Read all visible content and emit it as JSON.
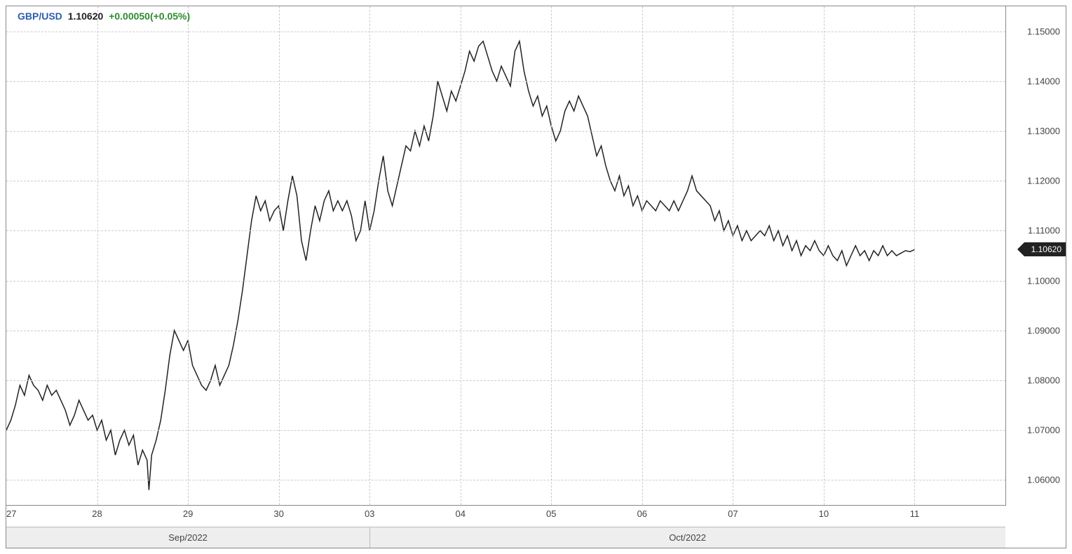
{
  "header": {
    "symbol": "GBP/USD",
    "price": "1.10620",
    "change": "+0.00050(+0.05%)"
  },
  "chart": {
    "type": "line",
    "line_color": "#222222",
    "line_width": 1.5,
    "background_color": "#ffffff",
    "grid_color": "#cccccc",
    "border_color": "#888888",
    "y_axis": {
      "min": 1.055,
      "max": 1.155,
      "ticks": [
        1.06,
        1.07,
        1.08,
        1.09,
        1.1,
        1.11,
        1.12,
        1.13,
        1.14,
        1.15
      ],
      "tick_labels": [
        "1.06000",
        "1.07000",
        "1.08000",
        "1.09000",
        "1.10000",
        "1.11000",
        "1.12000",
        "1.13000",
        "1.14000",
        "1.15000"
      ],
      "label_fontsize": 13,
      "label_color": "#444444"
    },
    "x_axis": {
      "min": 0,
      "max": 11,
      "ticks": [
        0,
        1,
        2,
        3,
        4,
        5,
        6,
        7,
        8,
        9,
        10,
        11
      ],
      "tick_labels": [
        "27",
        "28",
        "29",
        "30",
        "03",
        "04",
        "05",
        "06",
        "07",
        "10",
        "11",
        ""
      ],
      "month_bands": [
        {
          "label": "Sep/2022",
          "start": 0,
          "end": 4
        },
        {
          "label": "Oct/2022",
          "start": 4,
          "end": 11
        }
      ],
      "month_band_bg": "#eeeeee",
      "label_fontsize": 13
    },
    "current_flag": {
      "value": 1.1062,
      "label": "1.10620",
      "bg": "#222222",
      "color": "#ffffff"
    },
    "series": [
      [
        0.0,
        1.07
      ],
      [
        0.05,
        1.072
      ],
      [
        0.1,
        1.075
      ],
      [
        0.15,
        1.079
      ],
      [
        0.2,
        1.077
      ],
      [
        0.25,
        1.081
      ],
      [
        0.3,
        1.079
      ],
      [
        0.35,
        1.078
      ],
      [
        0.4,
        1.076
      ],
      [
        0.45,
        1.079
      ],
      [
        0.5,
        1.077
      ],
      [
        0.55,
        1.078
      ],
      [
        0.6,
        1.076
      ],
      [
        0.65,
        1.074
      ],
      [
        0.7,
        1.071
      ],
      [
        0.75,
        1.073
      ],
      [
        0.8,
        1.076
      ],
      [
        0.85,
        1.074
      ],
      [
        0.9,
        1.072
      ],
      [
        0.95,
        1.073
      ],
      [
        1.0,
        1.07
      ],
      [
        1.05,
        1.072
      ],
      [
        1.1,
        1.068
      ],
      [
        1.15,
        1.07
      ],
      [
        1.2,
        1.065
      ],
      [
        1.25,
        1.068
      ],
      [
        1.3,
        1.07
      ],
      [
        1.35,
        1.067
      ],
      [
        1.4,
        1.069
      ],
      [
        1.45,
        1.063
      ],
      [
        1.5,
        1.066
      ],
      [
        1.55,
        1.064
      ],
      [
        1.57,
        1.058
      ],
      [
        1.6,
        1.065
      ],
      [
        1.65,
        1.068
      ],
      [
        1.7,
        1.072
      ],
      [
        1.75,
        1.078
      ],
      [
        1.8,
        1.085
      ],
      [
        1.85,
        1.09
      ],
      [
        1.9,
        1.088
      ],
      [
        1.95,
        1.086
      ],
      [
        2.0,
        1.088
      ],
      [
        2.05,
        1.083
      ],
      [
        2.1,
        1.081
      ],
      [
        2.15,
        1.079
      ],
      [
        2.2,
        1.078
      ],
      [
        2.25,
        1.08
      ],
      [
        2.3,
        1.083
      ],
      [
        2.35,
        1.079
      ],
      [
        2.4,
        1.081
      ],
      [
        2.45,
        1.083
      ],
      [
        2.5,
        1.087
      ],
      [
        2.55,
        1.092
      ],
      [
        2.6,
        1.098
      ],
      [
        2.65,
        1.105
      ],
      [
        2.7,
        1.112
      ],
      [
        2.75,
        1.117
      ],
      [
        2.8,
        1.114
      ],
      [
        2.85,
        1.116
      ],
      [
        2.9,
        1.112
      ],
      [
        2.95,
        1.114
      ],
      [
        3.0,
        1.115
      ],
      [
        3.05,
        1.11
      ],
      [
        3.1,
        1.116
      ],
      [
        3.15,
        1.121
      ],
      [
        3.2,
        1.117
      ],
      [
        3.25,
        1.108
      ],
      [
        3.3,
        1.104
      ],
      [
        3.35,
        1.11
      ],
      [
        3.4,
        1.115
      ],
      [
        3.45,
        1.112
      ],
      [
        3.5,
        1.116
      ],
      [
        3.55,
        1.118
      ],
      [
        3.6,
        1.114
      ],
      [
        3.65,
        1.116
      ],
      [
        3.7,
        1.114
      ],
      [
        3.75,
        1.116
      ],
      [
        3.8,
        1.113
      ],
      [
        3.85,
        1.108
      ],
      [
        3.9,
        1.11
      ],
      [
        3.95,
        1.116
      ],
      [
        4.0,
        1.11
      ],
      [
        4.05,
        1.114
      ],
      [
        4.1,
        1.12
      ],
      [
        4.15,
        1.125
      ],
      [
        4.2,
        1.118
      ],
      [
        4.25,
        1.115
      ],
      [
        4.3,
        1.119
      ],
      [
        4.35,
        1.123
      ],
      [
        4.4,
        1.127
      ],
      [
        4.45,
        1.126
      ],
      [
        4.5,
        1.13
      ],
      [
        4.55,
        1.127
      ],
      [
        4.6,
        1.131
      ],
      [
        4.65,
        1.128
      ],
      [
        4.7,
        1.133
      ],
      [
        4.75,
        1.14
      ],
      [
        4.8,
        1.137
      ],
      [
        4.85,
        1.134
      ],
      [
        4.9,
        1.138
      ],
      [
        4.95,
        1.136
      ],
      [
        5.0,
        1.139
      ],
      [
        5.05,
        1.142
      ],
      [
        5.1,
        1.146
      ],
      [
        5.15,
        1.144
      ],
      [
        5.2,
        1.147
      ],
      [
        5.25,
        1.148
      ],
      [
        5.3,
        1.145
      ],
      [
        5.35,
        1.142
      ],
      [
        5.4,
        1.14
      ],
      [
        5.45,
        1.143
      ],
      [
        5.5,
        1.141
      ],
      [
        5.55,
        1.139
      ],
      [
        5.6,
        1.146
      ],
      [
        5.65,
        1.148
      ],
      [
        5.7,
        1.142
      ],
      [
        5.75,
        1.138
      ],
      [
        5.8,
        1.135
      ],
      [
        5.85,
        1.137
      ],
      [
        5.9,
        1.133
      ],
      [
        5.95,
        1.135
      ],
      [
        6.0,
        1.131
      ],
      [
        6.05,
        1.128
      ],
      [
        6.1,
        1.13
      ],
      [
        6.15,
        1.134
      ],
      [
        6.2,
        1.136
      ],
      [
        6.25,
        1.134
      ],
      [
        6.3,
        1.137
      ],
      [
        6.35,
        1.135
      ],
      [
        6.4,
        1.133
      ],
      [
        6.45,
        1.129
      ],
      [
        6.5,
        1.125
      ],
      [
        6.55,
        1.127
      ],
      [
        6.6,
        1.123
      ],
      [
        6.65,
        1.12
      ],
      [
        6.7,
        1.118
      ],
      [
        6.75,
        1.121
      ],
      [
        6.8,
        1.117
      ],
      [
        6.85,
        1.119
      ],
      [
        6.9,
        1.115
      ],
      [
        6.95,
        1.117
      ],
      [
        7.0,
        1.114
      ],
      [
        7.05,
        1.116
      ],
      [
        7.1,
        1.115
      ],
      [
        7.15,
        1.114
      ],
      [
        7.2,
        1.116
      ],
      [
        7.25,
        1.115
      ],
      [
        7.3,
        1.114
      ],
      [
        7.35,
        1.116
      ],
      [
        7.4,
        1.114
      ],
      [
        7.45,
        1.116
      ],
      [
        7.5,
        1.118
      ],
      [
        7.55,
        1.121
      ],
      [
        7.6,
        1.118
      ],
      [
        7.65,
        1.117
      ],
      [
        7.7,
        1.116
      ],
      [
        7.75,
        1.115
      ],
      [
        7.8,
        1.112
      ],
      [
        7.85,
        1.114
      ],
      [
        7.9,
        1.11
      ],
      [
        7.95,
        1.112
      ],
      [
        8.0,
        1.109
      ],
      [
        8.05,
        1.111
      ],
      [
        8.1,
        1.108
      ],
      [
        8.15,
        1.11
      ],
      [
        8.2,
        1.108
      ],
      [
        8.25,
        1.109
      ],
      [
        8.3,
        1.11
      ],
      [
        8.35,
        1.109
      ],
      [
        8.4,
        1.111
      ],
      [
        8.45,
        1.108
      ],
      [
        8.5,
        1.11
      ],
      [
        8.55,
        1.107
      ],
      [
        8.6,
        1.109
      ],
      [
        8.65,
        1.106
      ],
      [
        8.7,
        1.108
      ],
      [
        8.75,
        1.105
      ],
      [
        8.8,
        1.107
      ],
      [
        8.85,
        1.106
      ],
      [
        8.9,
        1.108
      ],
      [
        8.95,
        1.106
      ],
      [
        9.0,
        1.105
      ],
      [
        9.05,
        1.107
      ],
      [
        9.1,
        1.105
      ],
      [
        9.15,
        1.104
      ],
      [
        9.2,
        1.106
      ],
      [
        9.25,
        1.103
      ],
      [
        9.3,
        1.105
      ],
      [
        9.35,
        1.107
      ],
      [
        9.4,
        1.105
      ],
      [
        9.45,
        1.106
      ],
      [
        9.5,
        1.104
      ],
      [
        9.55,
        1.106
      ],
      [
        9.6,
        1.105
      ],
      [
        9.65,
        1.107
      ],
      [
        9.7,
        1.105
      ],
      [
        9.75,
        1.106
      ],
      [
        9.8,
        1.105
      ],
      [
        9.85,
        1.1055
      ],
      [
        9.9,
        1.106
      ],
      [
        9.95,
        1.1058
      ],
      [
        10.0,
        1.1062
      ]
    ]
  }
}
